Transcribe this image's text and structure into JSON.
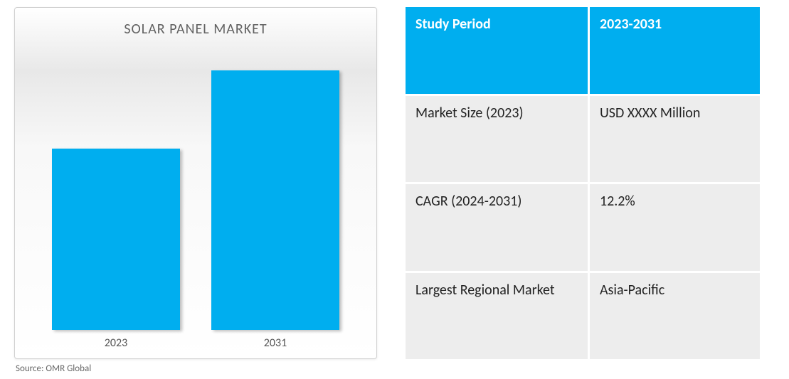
{
  "chart": {
    "type": "bar",
    "title": "SOLAR PANEL MARKET",
    "title_fontsize": 20,
    "title_color": "#606060",
    "categories": [
      "2023",
      "2031"
    ],
    "values": [
      65,
      93
    ],
    "value_max": 100,
    "bar_colors": [
      "#00aeef",
      "#00aeef"
    ],
    "bar_width_pct": 40,
    "bar_left_pct": [
      5,
      55
    ],
    "background_gradient": [
      "#ffffff",
      "#f5f5f5",
      "#e8e8e8",
      "#f8f8f8",
      "#ffffff"
    ],
    "border_color": "#d0d0d0",
    "xlabel_color": "#555555",
    "xlabel_fontsize": 16,
    "shadow_color": "rgba(0,0,0,0.25)"
  },
  "source_text": "Source: OMR Global",
  "table": {
    "header_bg": "#00aeef",
    "header_color": "#ffffff",
    "body_bg": "#ededed",
    "body_color": "#222222",
    "cell_fontsize": 20,
    "header_font_weight": 700,
    "rows": [
      {
        "label": "Study Period",
        "value": "2023-2031",
        "is_header": true
      },
      {
        "label": "Market Size (2023)",
        "value": "USD XXXX Million",
        "is_header": false
      },
      {
        "label": "CAGR (2024-2031)",
        "value": "12.2%",
        "is_header": false
      },
      {
        "label": "Largest Regional Market",
        "value": "Asia-Pacific",
        "is_header": false
      }
    ]
  }
}
